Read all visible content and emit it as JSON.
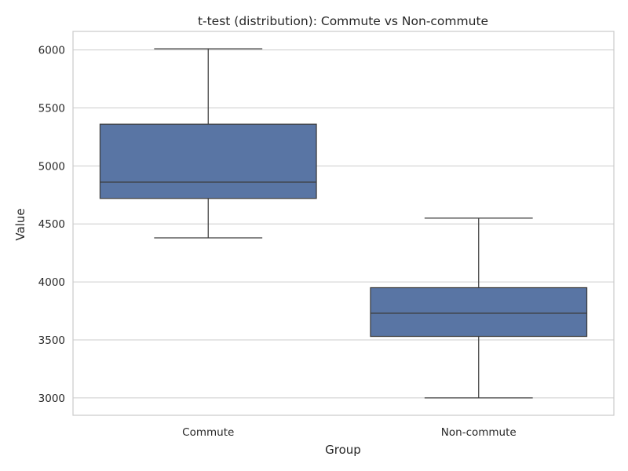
{
  "chart_data": {
    "type": "box",
    "title": "t-test (distribution): Commute vs Non-commute",
    "xlabel": "Group",
    "ylabel": "Value",
    "categories": [
      "Commute",
      "Non-commute"
    ],
    "boxes": [
      {
        "category": "Commute",
        "whisker_low": 4380,
        "q1": 4720,
        "median": 4860,
        "q3": 5360,
        "whisker_high": 6010
      },
      {
        "category": "Non-commute",
        "whisker_low": 3000,
        "q1": 3530,
        "median": 3730,
        "q3": 3950,
        "whisker_high": 4550
      }
    ],
    "yticks": [
      3000,
      3500,
      4000,
      4500,
      5000,
      5500,
      6000
    ],
    "ylim": [
      2850,
      6160
    ],
    "grid": true,
    "box_color": "#5975a4",
    "line_color": "#3d3d3d",
    "grid_color": "#cccccc"
  }
}
